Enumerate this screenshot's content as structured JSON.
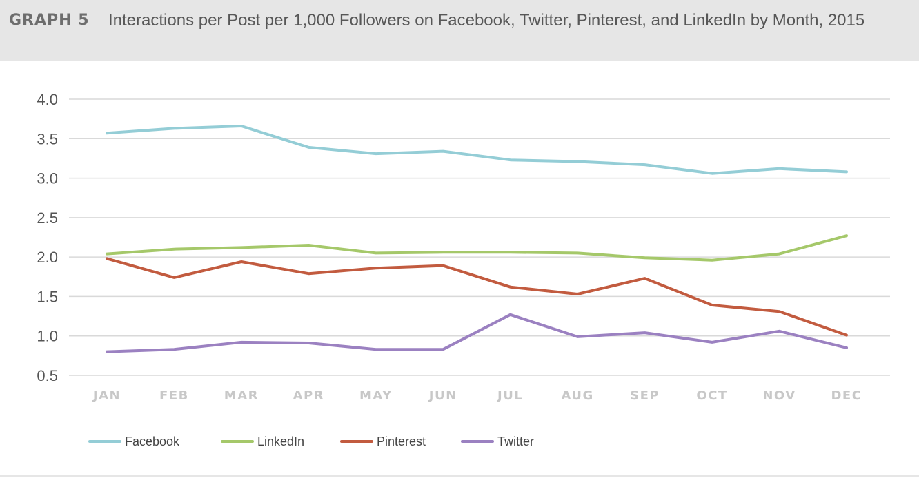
{
  "header": {
    "label": "GRAPH 5",
    "title": "Interactions per Post per 1,000 Followers on Facebook, Twitter, Pinterest, and LinkedIn by Month, 2015"
  },
  "chart_data": {
    "type": "line",
    "title": "Interactions per Post per 1,000 Followers on Facebook, Twitter, Pinterest, and LinkedIn by Month, 2015",
    "xlabel": "",
    "ylabel": "",
    "categories": [
      "JAN",
      "FEB",
      "MAR",
      "APR",
      "MAY",
      "JUN",
      "JUL",
      "AUG",
      "SEP",
      "OCT",
      "NOV",
      "DEC"
    ],
    "ylim": [
      0.5,
      4.0
    ],
    "yticks": [
      "0.5",
      "1.0",
      "1.5",
      "2.0",
      "2.5",
      "3.0",
      "3.5",
      "4.0"
    ],
    "grid": true,
    "legend_position": "bottom-left",
    "series": [
      {
        "name": "Facebook",
        "color": "#94cdd6",
        "values": [
          3.57,
          3.63,
          3.66,
          3.39,
          3.31,
          3.34,
          3.23,
          3.21,
          3.17,
          3.06,
          3.12,
          3.08
        ]
      },
      {
        "name": "LinkedIn",
        "color": "#a5c86a",
        "values": [
          2.04,
          2.1,
          2.12,
          2.15,
          2.05,
          2.06,
          2.06,
          2.05,
          1.99,
          1.96,
          2.04,
          2.27
        ]
      },
      {
        "name": "Pinterest",
        "color": "#c25b3f",
        "values": [
          1.98,
          1.74,
          1.94,
          1.79,
          1.86,
          1.89,
          1.62,
          1.53,
          1.73,
          1.39,
          1.31,
          1.01
        ]
      },
      {
        "name": "Twitter",
        "color": "#9b81c1",
        "values": [
          0.8,
          0.83,
          0.92,
          0.91,
          0.83,
          0.83,
          1.27,
          0.99,
          1.04,
          0.92,
          1.06,
          0.85
        ]
      }
    ]
  }
}
